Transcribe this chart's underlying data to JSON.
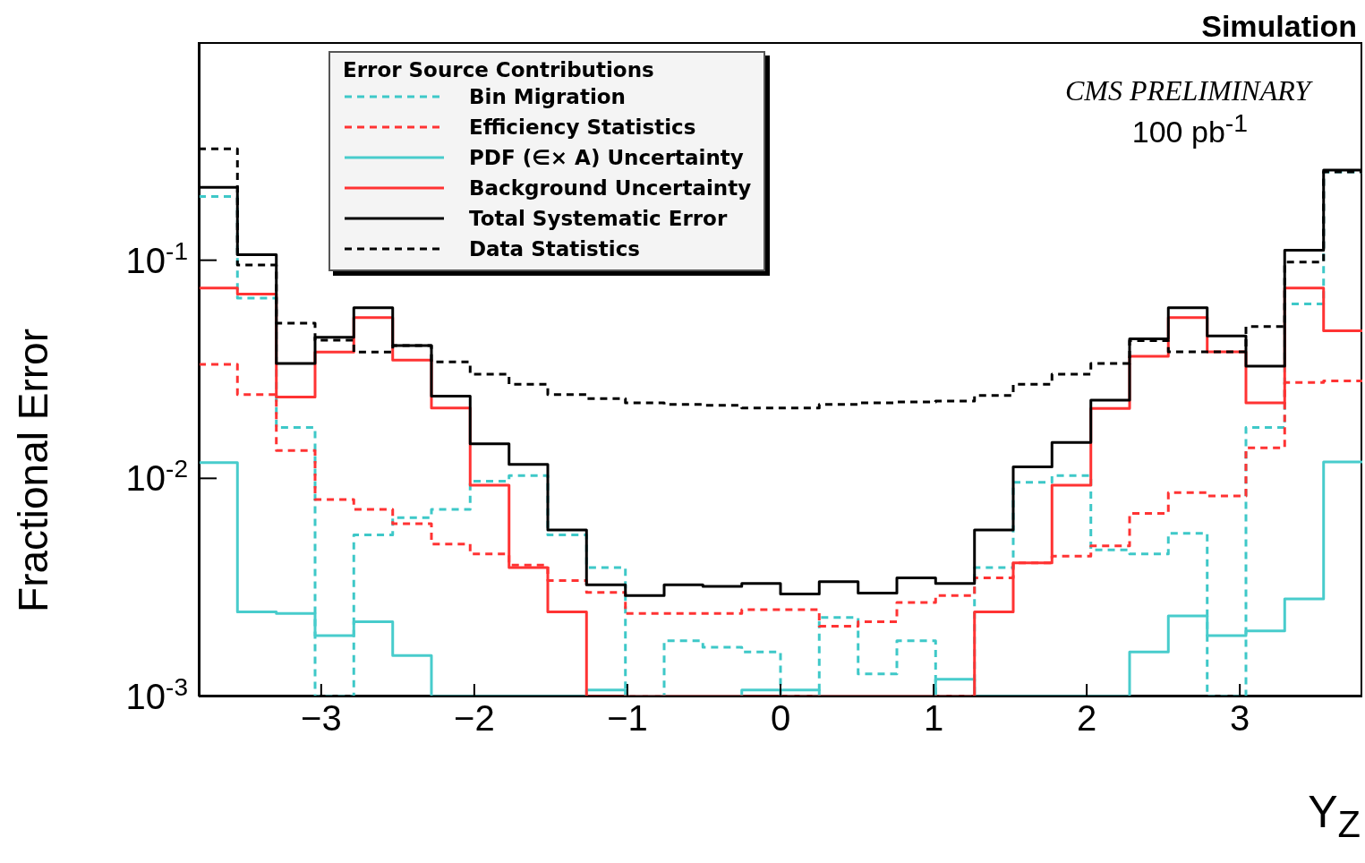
{
  "chart_data": {
    "type": "histogram",
    "ylabel": "Fractional Error",
    "xlabel": "Y$_{Z}$",
    "legend_title": "Error Source Contributions",
    "annotations": [
      "Simulation",
      "CMS PRELIMINARY",
      "100 pb$^{-1}$"
    ],
    "bins": [
      -3.8,
      -3.547,
      -3.293,
      -3.04,
      -2.787,
      -2.533,
      -2.28,
      -2.027,
      -1.773,
      -1.52,
      -1.267,
      -1.013,
      -0.76,
      -0.507,
      -0.253,
      0,
      0.253,
      0.507,
      0.76,
      1.013,
      1.267,
      1.52,
      1.773,
      2.027,
      2.28,
      2.533,
      2.787,
      3.04,
      3.293,
      3.547,
      3.8
    ],
    "series": [
      {
        "name": "Bin Migration",
        "color": "#3ec8c8",
        "line_style": "dashed",
        "values": [
          0.196,
          0.067,
          0.0171,
          null,
          0.0055,
          0.0066,
          0.0072,
          0.0097,
          0.0103,
          0.0055,
          0.0039,
          null,
          0.0018,
          0.00168,
          0.0016,
          null,
          0.0023,
          0.00127,
          0.0018,
          null,
          0.0039,
          0.0096,
          0.0103,
          0.0047,
          0.0045,
          0.0056,
          null,
          0.0171,
          0.063,
          0.254
        ]
      },
      {
        "name": "Efficiency Statistics",
        "color": "#ff3333",
        "line_style": "dashed",
        "values": [
          0.0333,
          0.0242,
          0.0134,
          0.008,
          0.0072,
          0.0062,
          0.005,
          0.0045,
          0.004,
          0.0034,
          0.003,
          0.0024,
          0.0024,
          0.0024,
          0.0025,
          0.0025,
          0.0021,
          0.0022,
          0.0027,
          0.0029,
          0.0035,
          0.0041,
          0.0044,
          0.0049,
          0.0069,
          0.0086,
          0.0083,
          0.0138,
          0.0275,
          0.028
        ]
      },
      {
        "name": "PDF (∈× A) Uncertainty",
        "color": "#48cccc",
        "line_style": "solid",
        "values": [
          0.0118,
          0.00244,
          0.0024,
          0.0019,
          0.0022,
          0.00154,
          null,
          null,
          null,
          null,
          0.00107,
          null,
          null,
          null,
          0.00107,
          0.00107,
          null,
          null,
          null,
          0.0012,
          null,
          null,
          null,
          null,
          0.0016,
          0.00234,
          0.0019,
          0.002,
          0.0028,
          0.0119
        ]
      },
      {
        "name": "Background Uncertainty",
        "color": "#ff3333",
        "line_style": "solid",
        "values": [
          0.0745,
          0.07,
          0.0236,
          0.0379,
          0.0546,
          0.0348,
          0.021,
          0.0093,
          0.0039,
          0.00244,
          null,
          null,
          null,
          null,
          null,
          null,
          null,
          null,
          null,
          null,
          0.00244,
          0.0041,
          0.0093,
          0.0209,
          0.0363,
          0.0546,
          0.038,
          0.0222,
          0.0745,
          0.0475
        ]
      },
      {
        "name": "Total Systematic Error",
        "color": "#000000",
        "line_style": "solid",
        "values": [
          0.216,
          0.106,
          0.0336,
          0.0443,
          0.0605,
          0.0406,
          0.0238,
          0.0144,
          0.0116,
          0.0058,
          0.00325,
          0.0029,
          0.00325,
          0.0032,
          0.0033,
          0.00295,
          0.00336,
          0.00298,
          0.0035,
          0.0033,
          0.0058,
          0.0113,
          0.0146,
          0.0228,
          0.0436,
          0.0605,
          0.045,
          0.0327,
          0.111,
          0.259
        ]
      },
      {
        "name": "Data Statistics",
        "color": "#000000",
        "line_style": "dashed",
        "values": [
          0.324,
          0.095,
          0.0514,
          0.043,
          0.0379,
          0.0406,
          0.0342,
          0.03,
          0.027,
          0.0242,
          0.0232,
          0.0222,
          0.0218,
          0.0216,
          0.021,
          0.021,
          0.0218,
          0.0222,
          0.0224,
          0.0226,
          0.024,
          0.027,
          0.03,
          0.0336,
          0.0428,
          0.038,
          0.038,
          0.0496,
          0.098,
          0.254
        ]
      }
    ],
    "xlim": [
      -3.8,
      3.8
    ],
    "xticks": [
      -3,
      -2,
      -1,
      0,
      1,
      2,
      3
    ],
    "ylim": [
      0.001,
      1
    ],
    "log": true,
    "yticks": [
      {
        "value": 0.001,
        "label": "10$^{-3}$"
      },
      {
        "value": 0.01,
        "label": "10$^{-2}$"
      },
      {
        "value": 0.1,
        "label": "10$^{-1}$"
      }
    ],
    "legend": "top left"
  }
}
